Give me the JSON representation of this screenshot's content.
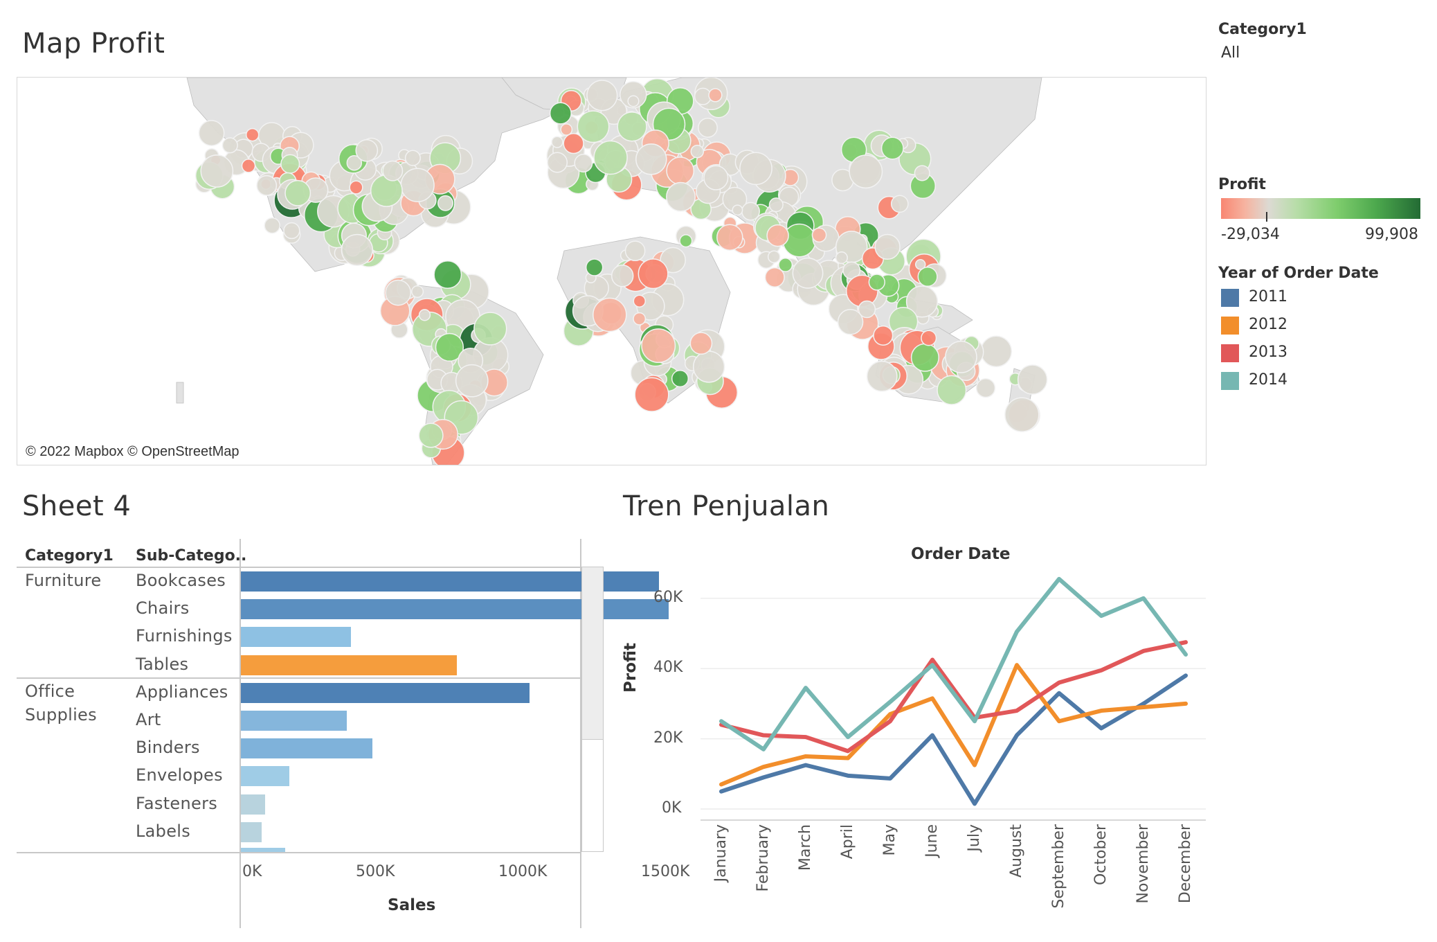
{
  "dashboard": {
    "map_title": "Map Profit",
    "bar_title": "Sheet 4",
    "line_title": "Tren Penjualan"
  },
  "filter": {
    "label": "Category1",
    "value": "All"
  },
  "map": {
    "attribution": "© 2022 Mapbox © OpenStreetMap",
    "color_scale": [
      "#f88672",
      "#f6b3a0",
      "#dcdad3",
      "#b7dda8",
      "#7fcd6d",
      "#4ca84d",
      "#236b34"
    ]
  },
  "profit_legend": {
    "title": "Profit",
    "min_label": "-29,034",
    "max_label": "99,908"
  },
  "year_legend": {
    "title": "Year of Order Date",
    "items": [
      {
        "label": "2011",
        "color": "#4e79a7"
      },
      {
        "label": "2012",
        "color": "#f28e2b"
      },
      {
        "label": "2013",
        "color": "#e15759"
      },
      {
        "label": "2014",
        "color": "#76b7b2"
      }
    ]
  },
  "sheet4": {
    "col_headers": [
      "Category1",
      "Sub-Catego.."
    ],
    "categories": [
      {
        "name": "Furniture",
        "rows": [
          "Bookcases",
          "Chairs",
          "Furnishings",
          "Tables"
        ]
      },
      {
        "name": "Office Supplies",
        "name_lines": [
          "Office",
          "Supplies"
        ],
        "rows": [
          "Appliances",
          "Art",
          "Binders",
          "Envelopes",
          "Fasteners",
          "Labels"
        ]
      }
    ],
    "x_axis": {
      "title": "Sales",
      "ticks": [
        "0K",
        "500K",
        "1000K",
        "1500K"
      ]
    }
  },
  "chart_data": [
    {
      "type": "bar",
      "orientation": "horizontal",
      "categories": [
        "Bookcases",
        "Chairs",
        "Furnishings",
        "Tables",
        "Appliances",
        "Art",
        "Binders",
        "Envelopes",
        "Fasteners",
        "Labels"
      ],
      "values": [
        1466000,
        1501000,
        385000,
        757000,
        1011000,
        372000,
        462000,
        170000,
        84000,
        73000
      ],
      "colors": [
        "#4e81b5",
        "#5b8fc0",
        "#8ec1e3",
        "#f59d3d",
        "#4e81b5",
        "#85b6dc",
        "#7fb2da",
        "#9fcce6",
        "#b8d3de",
        "#b8d3de"
      ],
      "xlabel": "Sales",
      "x_ticks": [
        "0K",
        "500K",
        "1000K",
        "1500K"
      ],
      "xlim": [
        0,
        1800000
      ]
    },
    {
      "type": "line",
      "title": "Order Date",
      "x": [
        "January",
        "February",
        "March",
        "April",
        "May",
        "June",
        "July",
        "August",
        "September",
        "October",
        "November",
        "December"
      ],
      "ylabel": "Profit",
      "y_ticks": [
        "0K",
        "20K",
        "40K",
        "60K"
      ],
      "ylim": [
        -3000,
        72000
      ],
      "series": [
        {
          "name": "2011",
          "color": "#4e79a7",
          "values": [
            5000,
            9000,
            12500,
            9500,
            8700,
            21000,
            1500,
            21000,
            33000,
            23000,
            30000,
            38000
          ]
        },
        {
          "name": "2012",
          "color": "#f28e2b",
          "values": [
            7000,
            12000,
            15000,
            14500,
            27000,
            31500,
            12500,
            41000,
            25000,
            28000,
            29000,
            30000
          ]
        },
        {
          "name": "2013",
          "color": "#e15759",
          "values": [
            24000,
            21000,
            20500,
            16500,
            25000,
            42500,
            26000,
            28000,
            36000,
            39500,
            45000,
            47500
          ]
        },
        {
          "name": "2014",
          "color": "#76b7b2",
          "values": [
            25000,
            17000,
            34500,
            20500,
            30500,
            41000,
            25000,
            50500,
            65500,
            55000,
            60000,
            44000
          ]
        }
      ]
    }
  ]
}
